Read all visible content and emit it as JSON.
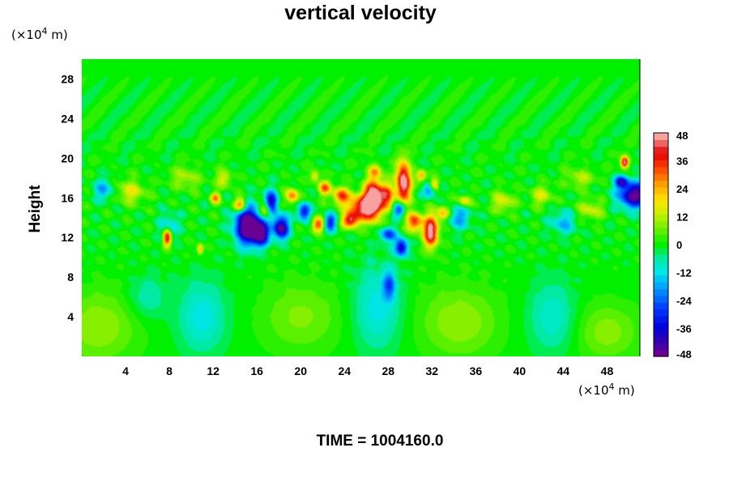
{
  "chart_data": {
    "type": "heatmap",
    "title": "vertical velocity",
    "ylabel": "Height",
    "xlabel": "",
    "x_unit": {
      "base": "(×10",
      "exp": "4",
      "tail": " m)"
    },
    "y_unit": {
      "base": "(×10",
      "exp": "4",
      "tail": " m)"
    },
    "xlim": [
      0,
      51
    ],
    "ylim": [
      0,
      30
    ],
    "x_ticks": [
      4,
      8,
      12,
      16,
      20,
      24,
      28,
      32,
      36,
      40,
      44,
      48
    ],
    "y_ticks": [
      4,
      8,
      12,
      16,
      20,
      24,
      28
    ],
    "colorbar": {
      "min": -48,
      "max": 48,
      "tick_values": [
        -48,
        -36,
        -24,
        -12,
        0,
        12,
        24,
        36,
        48
      ],
      "tick_labels": [
        "-48",
        "-36",
        "-24",
        "-12",
        "0",
        "12",
        "24",
        "36",
        "48"
      ]
    },
    "features": [
      {
        "x": 15.2,
        "y": 13.2,
        "sx": 0.8,
        "sy": 1.3,
        "value": -60
      },
      {
        "x": 16.4,
        "y": 12.4,
        "sx": 0.5,
        "sy": 0.8,
        "value": -45
      },
      {
        "x": 17.3,
        "y": 15.5,
        "sx": 0.4,
        "sy": 0.8,
        "value": -42
      },
      {
        "x": 18.2,
        "y": 13.0,
        "sx": 0.5,
        "sy": 0.8,
        "value": -48
      },
      {
        "x": 20.3,
        "y": 14.6,
        "sx": 0.4,
        "sy": 0.6,
        "value": -35
      },
      {
        "x": 22.7,
        "y": 13.5,
        "sx": 0.4,
        "sy": 0.6,
        "value": -32
      },
      {
        "x": 29.2,
        "y": 11.0,
        "sx": 0.4,
        "sy": 0.6,
        "value": -40
      },
      {
        "x": 28.0,
        "y": 12.3,
        "sx": 0.5,
        "sy": 0.5,
        "value": -28
      },
      {
        "x": 28.1,
        "y": 7.2,
        "sx": 0.4,
        "sy": 1.0,
        "value": -22
      },
      {
        "x": 29.0,
        "y": 14.8,
        "sx": 0.4,
        "sy": 0.5,
        "value": -30
      },
      {
        "x": 50.5,
        "y": 16.3,
        "sx": 1.0,
        "sy": 0.9,
        "value": -48
      },
      {
        "x": 49.3,
        "y": 17.6,
        "sx": 0.4,
        "sy": 0.4,
        "value": -34
      },
      {
        "x": 31.8,
        "y": 16.8,
        "sx": 0.4,
        "sy": 0.5,
        "value": -24
      },
      {
        "x": 2.0,
        "y": 16.8,
        "sx": 0.6,
        "sy": 0.7,
        "value": -18
      },
      {
        "x": 8.0,
        "y": 13.2,
        "sx": 0.6,
        "sy": 0.8,
        "value": -14
      },
      {
        "x": 44.0,
        "y": 13.5,
        "sx": 0.8,
        "sy": 0.8,
        "value": -16
      },
      {
        "x": 34.5,
        "y": 14.0,
        "sx": 0.7,
        "sy": 0.8,
        "value": -18
      },
      {
        "x": 26.6,
        "y": 15.8,
        "sx": 0.55,
        "sy": 1.3,
        "value": 62
      },
      {
        "x": 29.4,
        "y": 17.6,
        "sx": 0.45,
        "sy": 1.4,
        "value": 55
      },
      {
        "x": 31.9,
        "y": 12.6,
        "sx": 0.45,
        "sy": 1.1,
        "value": 52
      },
      {
        "x": 25.4,
        "y": 15.0,
        "sx": 0.8,
        "sy": 0.9,
        "value": 40
      },
      {
        "x": 24.5,
        "y": 13.7,
        "sx": 0.5,
        "sy": 0.5,
        "value": 38
      },
      {
        "x": 23.7,
        "y": 16.2,
        "sx": 0.5,
        "sy": 0.6,
        "value": 34
      },
      {
        "x": 27.8,
        "y": 16.2,
        "sx": 0.5,
        "sy": 0.9,
        "value": 36
      },
      {
        "x": 30.4,
        "y": 13.6,
        "sx": 0.5,
        "sy": 0.7,
        "value": 36
      },
      {
        "x": 22.2,
        "y": 17.0,
        "sx": 0.4,
        "sy": 0.5,
        "value": 30
      },
      {
        "x": 21.6,
        "y": 13.3,
        "sx": 0.4,
        "sy": 0.5,
        "value": 34
      },
      {
        "x": 19.2,
        "y": 16.2,
        "sx": 0.4,
        "sy": 0.5,
        "value": 30
      },
      {
        "x": 16.8,
        "y": 14.8,
        "sx": 0.4,
        "sy": 0.5,
        "value": 28
      },
      {
        "x": 14.5,
        "y": 15.3,
        "sx": 0.4,
        "sy": 0.5,
        "value": 34
      },
      {
        "x": 12.2,
        "y": 16.0,
        "sx": 0.3,
        "sy": 0.4,
        "value": 28
      },
      {
        "x": 7.8,
        "y": 12.0,
        "sx": 0.25,
        "sy": 0.6,
        "value": 44
      },
      {
        "x": 10.8,
        "y": 10.8,
        "sx": 0.2,
        "sy": 0.35,
        "value": 26
      },
      {
        "x": 49.6,
        "y": 19.6,
        "sx": 0.25,
        "sy": 0.4,
        "value": 50
      },
      {
        "x": 33.0,
        "y": 14.4,
        "sx": 0.4,
        "sy": 0.5,
        "value": 24
      },
      {
        "x": 32.2,
        "y": 17.3,
        "sx": 0.3,
        "sy": 0.4,
        "value": 28
      },
      {
        "x": 35.0,
        "y": 15.7,
        "sx": 0.4,
        "sy": 0.4,
        "value": 20
      },
      {
        "x": 31.0,
        "y": 18.2,
        "sx": 0.3,
        "sy": 0.4,
        "value": 26
      },
      {
        "x": 26.8,
        "y": 18.7,
        "sx": 0.4,
        "sy": 0.5,
        "value": 22
      },
      {
        "x": 21.3,
        "y": 18.2,
        "sx": 0.3,
        "sy": 0.4,
        "value": 20
      },
      {
        "x": 4.5,
        "y": 16.6,
        "sx": 0.9,
        "sy": 0.8,
        "value": 16
      },
      {
        "x": 13.0,
        "y": 17.9,
        "sx": 0.5,
        "sy": 0.6,
        "value": 16
      },
      {
        "x": 38.5,
        "y": 15.6,
        "sx": 0.7,
        "sy": 0.7,
        "value": 16
      },
      {
        "x": 42.0,
        "y": 16.2,
        "sx": 0.7,
        "sy": 0.7,
        "value": 14
      },
      {
        "x": 46.5,
        "y": 14.8,
        "sx": 0.8,
        "sy": 0.7,
        "value": 14
      },
      {
        "x": 9.5,
        "y": 18.0,
        "sx": 0.9,
        "sy": 0.8,
        "value": 12
      },
      {
        "x": 45.5,
        "y": 18.0,
        "sx": 0.9,
        "sy": 0.7,
        "value": 12
      },
      {
        "x": 1.5,
        "y": 3.0,
        "sx": 2.5,
        "sy": 2.5,
        "value": 10
      },
      {
        "x": 20.0,
        "y": 4.0,
        "sx": 2.5,
        "sy": 2.5,
        "value": 8
      },
      {
        "x": 34.5,
        "y": 3.5,
        "sx": 2.5,
        "sy": 2.5,
        "value": 10
      },
      {
        "x": 48.0,
        "y": 2.5,
        "sx": 2.0,
        "sy": 2.0,
        "value": 9
      },
      {
        "x": 11.0,
        "y": 4.0,
        "sx": 1.5,
        "sy": 2.5,
        "value": -12
      },
      {
        "x": 27.0,
        "y": 5.0,
        "sx": 1.5,
        "sy": 3.0,
        "value": -12
      },
      {
        "x": 43.0,
        "y": 4.0,
        "sx": 1.5,
        "sy": 2.5,
        "value": -10
      },
      {
        "x": 6.0,
        "y": 6.0,
        "sx": 1.2,
        "sy": 1.5,
        "value": -8
      }
    ]
  },
  "footer": {
    "time_text": "TIME = 1004160.0"
  }
}
